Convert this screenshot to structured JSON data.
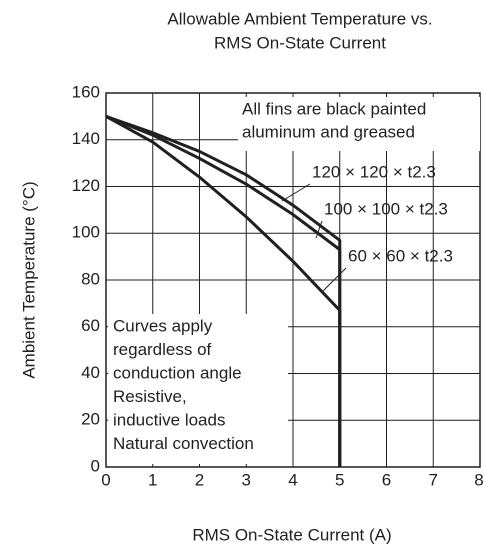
{
  "chart_data": {
    "type": "line",
    "title": [
      "Allowable Ambient Temperature vs.",
      "RMS On-State Current"
    ],
    "x_label": "RMS On-State Current  (A)",
    "y_label": "Ambient Temperature  (°C)",
    "xlim": [
      0,
      8
    ],
    "xticks": [
      0,
      1,
      2,
      3,
      4,
      5,
      6,
      7,
      8
    ],
    "ylim": [
      0,
      160
    ],
    "yticks": [
      0,
      20,
      40,
      60,
      80,
      100,
      120,
      140,
      160
    ],
    "grid": true,
    "series": [
      {
        "name": "120 × 120 × t2.3",
        "color": "#231f20",
        "x": [
          0,
          1,
          2,
          3,
          4,
          5,
          5
        ],
        "values": [
          150,
          143,
          135,
          125,
          112,
          97,
          0
        ]
      },
      {
        "name": "100 × 100 × t2.3",
        "color": "#231f20",
        "x": [
          0,
          1,
          2,
          3,
          4,
          5,
          5
        ],
        "values": [
          150,
          142,
          132,
          121,
          108,
          93,
          0
        ]
      },
      {
        "name": "60 × 60 × t2.3",
        "color": "#231f20",
        "x": [
          0,
          1,
          2,
          3,
          4,
          5,
          5
        ],
        "values": [
          150,
          139,
          124,
          107,
          88,
          67,
          0
        ]
      }
    ],
    "annotations": [
      [
        "All fins are black painted",
        "aluminum and greased"
      ],
      [
        "Curves apply",
        "regardless of",
        "conduction angle",
        "Resistive,",
        "inductive loads",
        "Natural convection"
      ]
    ]
  }
}
